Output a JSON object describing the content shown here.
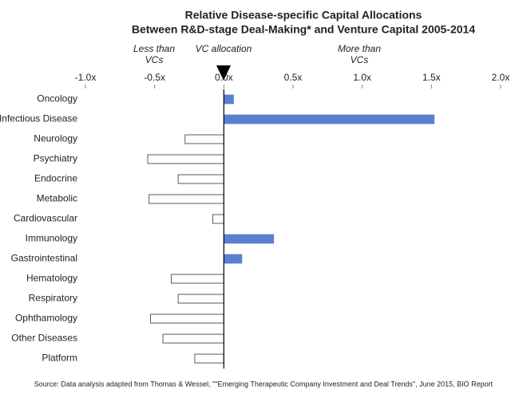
{
  "chart_data": {
    "type": "hbar",
    "title": [
      "Relative Disease-specific Capital Allocations",
      "Between R&D-stage Deal-Making* and Venture Capital 2005-2014"
    ],
    "annotations": {
      "less": [
        "Less than",
        "VCs"
      ],
      "center": "VC allocation",
      "more": [
        "More than",
        "VCs"
      ]
    },
    "source": "Source: Data analysis adapted from Thomas & Wessel, \"\"Emerging Therapeutic Company Investment and Deal Trends\", June 2015, BIO Report",
    "categories": [
      "Oncology",
      "Infectious Disease",
      "Neurology",
      "Psychiatry",
      "Endocrine",
      "Metabolic",
      "Cardiovascular",
      "Immunology",
      "Gastrointestinal",
      "Hematology",
      "Respiratory",
      "Ophthamology",
      "Other Diseases",
      "Platform"
    ],
    "values": [
      0.07,
      1.52,
      -0.28,
      -0.55,
      -0.33,
      -0.54,
      -0.08,
      0.36,
      0.13,
      -0.38,
      -0.33,
      -0.53,
      -0.44,
      -0.21
    ],
    "positive_color": "#5b7fcf",
    "negative_color": "#ffffff",
    "xlim": [
      -1,
      2
    ],
    "xticks": [
      {
        "value": -1,
        "label": "-1.0x"
      },
      {
        "value": -0.5,
        "label": "-0.5x"
      },
      {
        "value": 0,
        "label": "0.0x"
      },
      {
        "value": 0.5,
        "label": "0.5x"
      },
      {
        "value": 1,
        "label": "1.0x"
      },
      {
        "value": 1.5,
        "label": "1.5x"
      },
      {
        "value": 2,
        "label": "2.0x"
      }
    ]
  }
}
